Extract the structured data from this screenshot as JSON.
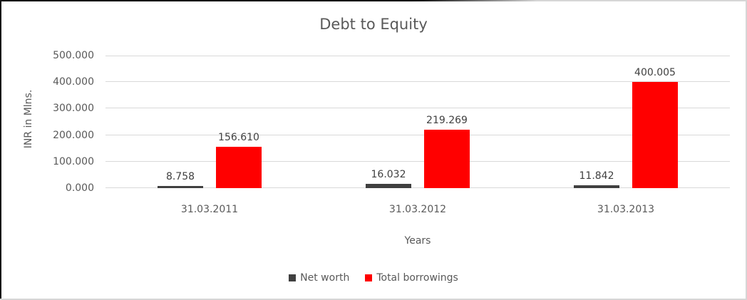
{
  "chart_data": {
    "type": "bar",
    "title": "Debt to Equity",
    "xlabel": "Years",
    "ylabel": "INR in Mlns.",
    "categories": [
      "31.03.2011",
      "31.03.2012",
      "31.03.2013"
    ],
    "series": [
      {
        "name": "Net worth",
        "color": "#404040",
        "values": [
          8.758,
          16.032,
          11.842
        ]
      },
      {
        "name": "Total borrowings",
        "color": "#ff0000",
        "values": [
          156.61,
          219.269,
          400.005
        ]
      }
    ],
    "value_labels": [
      [
        "8.758",
        "16.032",
        "11.842"
      ],
      [
        "156.610",
        "219.269",
        "400.005"
      ]
    ],
    "ylim": [
      0,
      500
    ],
    "ytick_step": 100,
    "ytick_labels": [
      "0.000",
      "100.000",
      "200.000",
      "300.000",
      "400.000",
      "500.000"
    ],
    "grid": true,
    "legend_position": "bottom"
  },
  "style": {
    "grid_color": "#d9d9d9",
    "axis_text_color": "#595959",
    "value_label_color": "#404040",
    "title_color": "#595959",
    "background": "#ffffff"
  }
}
